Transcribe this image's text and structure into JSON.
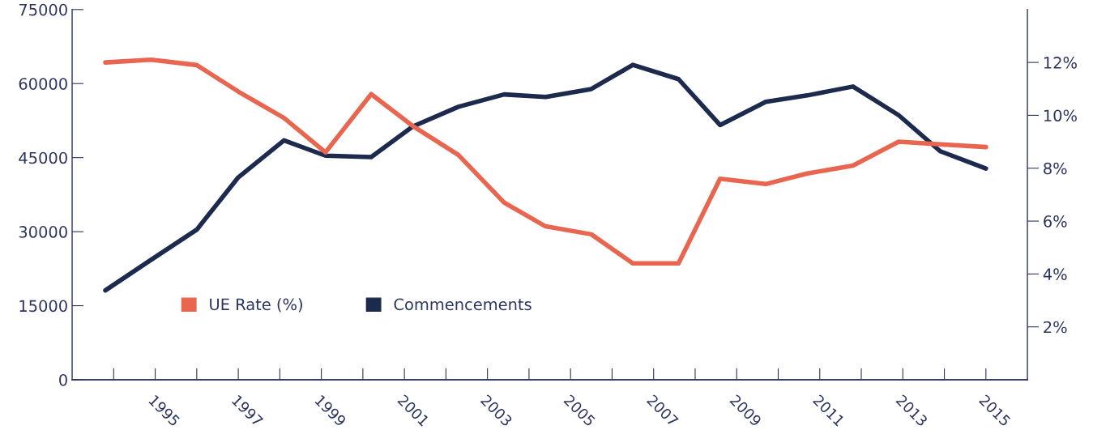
{
  "chart_data": {
    "type": "line",
    "x": [
      1993.8,
      1994.9,
      1996.0,
      1997.0,
      1998.1,
      1999.1,
      2000.2,
      2001.2,
      2002.3,
      2003.4,
      2004.4,
      2005.5,
      2006.5,
      2007.6,
      2008.6,
      2009.7,
      2010.7,
      2011.8,
      2012.9,
      2013.9,
      2015.0
    ],
    "series": [
      {
        "name": "UE Rate (%)",
        "color": "#e8664f",
        "axis": "y2",
        "values": [
          12.0,
          12.1,
          11.9,
          10.9,
          9.9,
          8.6,
          10.8,
          9.6,
          8.5,
          6.7,
          5.8,
          5.5,
          4.4,
          4.4,
          7.6,
          7.4,
          7.8,
          8.1,
          9.0,
          8.9,
          8.8
        ]
      },
      {
        "name": "Commencements",
        "color": "#1c2a4d",
        "values": [
          18100,
          24300,
          30400,
          41000,
          48500,
          45400,
          45100,
          51300,
          55300,
          57800,
          57300,
          58900,
          63800,
          60900,
          51600,
          56300,
          57600,
          59400,
          53600,
          46300,
          42800
        ]
      }
    ],
    "xlim": [
      1993,
      2016
    ],
    "xticks": [
      {
        "value": 1994,
        "label": null
      },
      1995,
      {
        "value": 1996,
        "label": null
      },
      1997,
      {
        "value": 1998,
        "label": null
      },
      1999,
      {
        "value": 2000,
        "label": null
      },
      2001,
      {
        "value": 2002,
        "label": null
      },
      2003,
      {
        "value": 2004,
        "label": null
      },
      2005,
      {
        "value": 2006,
        "label": null
      },
      2007,
      {
        "value": 2008,
        "label": null
      },
      2009,
      {
        "value": 2010,
        "label": null
      },
      2011,
      {
        "value": 2012,
        "label": null
      },
      2013,
      {
        "value": 2014,
        "label": null
      },
      2015
    ],
    "ylim": [
      0,
      75000
    ],
    "yticks": [
      0,
      15000,
      30000,
      45000,
      60000,
      75000
    ],
    "y2lim": [
      0,
      14
    ],
    "y2ticks": [
      {
        "value": 2,
        "label": "2%"
      },
      {
        "value": 4,
        "label": "4%"
      },
      {
        "value": 6,
        "label": "6%"
      },
      {
        "value": 8,
        "label": "8%"
      },
      {
        "value": 10,
        "label": "10%"
      },
      {
        "value": 12,
        "label": "12%"
      }
    ],
    "legend": "bottom left",
    "grid": false,
    "marker": "none",
    "line_style": "solid"
  }
}
